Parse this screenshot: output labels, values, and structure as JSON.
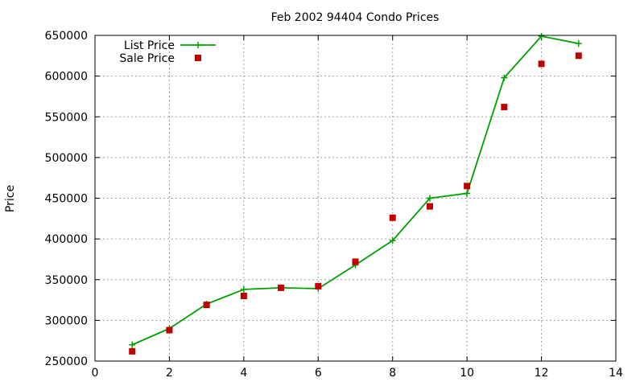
{
  "chart_data": {
    "type": "line",
    "title": "Feb 2002 94404 Condo Prices",
    "xlabel": "",
    "ylabel": "Price",
    "xlim": [
      0,
      14
    ],
    "ylim": [
      250000,
      650000
    ],
    "xticks": [
      0,
      2,
      4,
      6,
      8,
      10,
      12,
      14
    ],
    "yticks": [
      250000,
      300000,
      350000,
      400000,
      450000,
      500000,
      550000,
      600000,
      650000
    ],
    "grid": true,
    "legend_position": "top-left",
    "series": [
      {
        "name": "List Price",
        "style": "line-plus",
        "color": "#00a000",
        "x": [
          1,
          2,
          3,
          4,
          5,
          6,
          7,
          8,
          9,
          10,
          11,
          12,
          13
        ],
        "values": [
          270000,
          290000,
          320000,
          338000,
          340000,
          339000,
          368000,
          398000,
          450000,
          456000,
          598000,
          649000,
          640000
        ]
      },
      {
        "name": "Sale Price",
        "style": "square-points",
        "color": "#c00000",
        "x": [
          1,
          2,
          3,
          4,
          5,
          6,
          7,
          8,
          9,
          10,
          11,
          12,
          13
        ],
        "values": [
          262000,
          288000,
          319000,
          330000,
          340000,
          342000,
          372000,
          426000,
          440000,
          465000,
          562000,
          615000,
          625000
        ]
      }
    ]
  }
}
